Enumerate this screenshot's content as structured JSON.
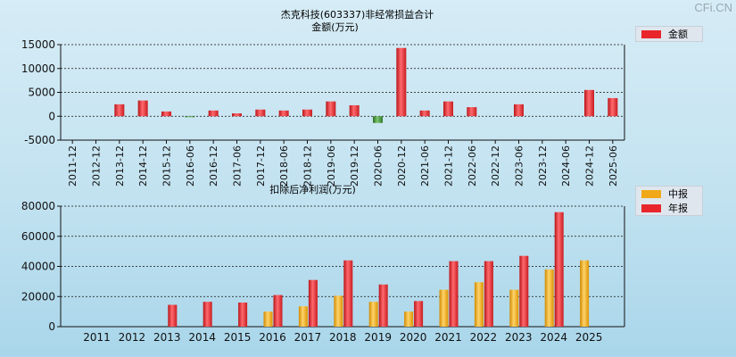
{
  "watermark": "CFi.CN",
  "colors": {
    "positive": "#e8262b",
    "negative": "#3a8a33",
    "interim": "#f0a818",
    "annual": "#e8262b"
  },
  "chart_data": [
    {
      "type": "bar",
      "title": "杰克科技(603337)非经常损益合计",
      "subtitle": "金额(万元)",
      "legend": [
        "金额"
      ],
      "legend_position": "top-right",
      "grid": true,
      "ylim": [
        -5000,
        15000
      ],
      "yticks": [
        "15000",
        "10000",
        "5000",
        "0",
        "-5000"
      ],
      "categories": [
        "2011-12",
        "2012-12",
        "2013-12",
        "2014-12",
        "2015-12",
        "2016-06",
        "2016-12",
        "2017-06",
        "2017-12",
        "2018-06",
        "2018-12",
        "2019-06",
        "2019-12",
        "2020-06",
        "2020-12",
        "2021-06",
        "2021-12",
        "2022-06",
        "2022-12",
        "2023-06",
        "2023-12",
        "2024-06",
        "2024-12",
        "2025-06"
      ],
      "values": [
        0,
        0,
        2500,
        3300,
        1000,
        -200,
        1200,
        600,
        1400,
        1200,
        1400,
        3100,
        2300,
        -1400,
        14300,
        1200,
        3100,
        1900,
        0,
        2500,
        0,
        0,
        5500,
        3800
      ]
    },
    {
      "type": "bar",
      "title": "扣除后净利润(万元)",
      "legend": [
        "中报",
        "年报"
      ],
      "legend_position": "top-right",
      "grid": true,
      "ylim": [
        0,
        80000
      ],
      "yticks": [
        "80000",
        "60000",
        "40000",
        "20000",
        "0"
      ],
      "categories": [
        "2011",
        "2012",
        "2013",
        "2014",
        "2015",
        "2016",
        "2017",
        "2018",
        "2019",
        "2020",
        "2021",
        "2022",
        "2023",
        "2024",
        "2025"
      ],
      "series": [
        {
          "name": "中报",
          "values": [
            null,
            null,
            null,
            null,
            null,
            10000,
            13500,
            20500,
            16500,
            10000,
            24500,
            29500,
            24500,
            38000,
            44000
          ]
        },
        {
          "name": "年报",
          "values": [
            null,
            null,
            14500,
            16500,
            16000,
            21000,
            31000,
            44000,
            28000,
            17000,
            43500,
            43500,
            47000,
            76000,
            null
          ]
        }
      ]
    }
  ]
}
